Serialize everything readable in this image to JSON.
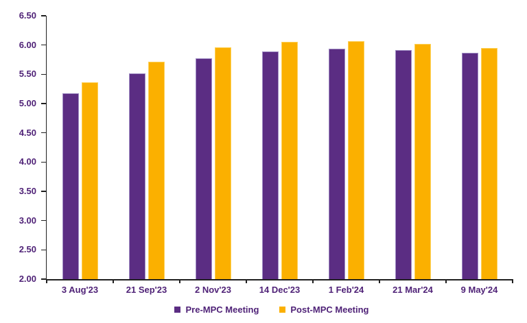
{
  "page": {
    "background": "#ffffff"
  },
  "chart_data": {
    "type": "bar",
    "title": "",
    "categories": [
      "3 Aug'23",
      "21 Sep'23",
      "2 Nov'23",
      "14 Dec'23",
      "1 Feb'24",
      "21 Mar'24",
      "9 May'24"
    ],
    "series": [
      {
        "name": "Pre-MPC Meeting",
        "color": "#5b2d83",
        "border_color": "#a18fc5",
        "values": [
          5.18,
          5.51,
          5.77,
          5.89,
          5.94,
          5.91,
          5.87
        ]
      },
      {
        "name": "Post-MPC Meeting",
        "color": "#fbb000",
        "border_color": "#fdd25a",
        "values": [
          5.36,
          5.71,
          5.96,
          6.05,
          6.07,
          6.02,
          5.95
        ]
      }
    ],
    "ylim": [
      2.0,
      6.5
    ],
    "y_tick_step": 0.5,
    "y_tick_labels": [
      "2.00",
      "2.50",
      "3.00",
      "3.50",
      "4.00",
      "4.50",
      "5.00",
      "5.50",
      "6.00",
      "6.50"
    ],
    "xlabel": "",
    "ylabel": "",
    "grid": "off",
    "legend_position": "bottom-center",
    "axis_color": "#1f1f1f",
    "label_color": "#4f2277"
  }
}
